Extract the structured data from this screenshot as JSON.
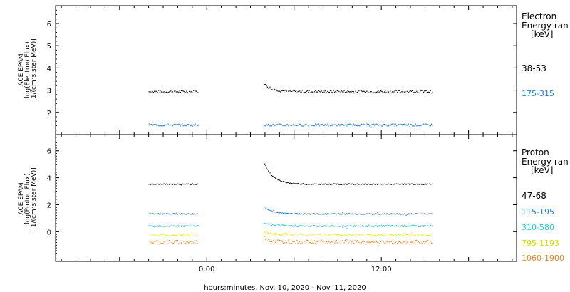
{
  "xlabel": "hours:minutes, Nov. 10, 2020 - Nov. 11, 2020",
  "colors": {
    "black": "#000000",
    "blue": "#1e7fd8",
    "cyan": "#22c6d6",
    "yellow": "#e6e600",
    "orange": "#e8851a"
  },
  "chart_data": [
    {
      "type": "scatter",
      "panel": "electron",
      "ylabel_lines": [
        "ACE EPAM",
        "log(Electron Flux)",
        "[1/(cm²s ster MeV)]"
      ],
      "legend_title": [
        "Electron",
        "Energy ran"
      ],
      "legend_unit": "[keV]",
      "x_range_hours": [
        -10.4,
        21.3
      ],
      "x_ticks": [
        {
          "label": "0:00",
          "hours": 0
        },
        {
          "label": "12:00",
          "hours": 12
        }
      ],
      "ylim": [
        1,
        6.8
      ],
      "y_ticks": [
        "2",
        "3",
        "4",
        "5",
        "6"
      ],
      "y_tick_values": [
        2,
        3,
        4,
        5,
        6
      ],
      "data_gap_hours": [
        -0.6,
        3.9
      ],
      "data_segments_hours": [
        [
          -4.0,
          -0.6
        ],
        [
          3.9,
          15.5
        ]
      ],
      "series": [
        {
          "name": "38-53",
          "color": "black",
          "level": 2.95,
          "spread": 0.06,
          "spike": 3.3
        },
        {
          "name": "175-315",
          "color": "blue",
          "level": 1.45,
          "spread": 0.05,
          "spike": null
        }
      ]
    },
    {
      "type": "scatter",
      "panel": "proton",
      "ylabel_lines": [
        "ACE EPAM",
        "log(Proton Flux)",
        "[1/(cm²s ster MeV)]"
      ],
      "legend_title": [
        "Proton",
        "Energy ran"
      ],
      "legend_unit": "[keV]",
      "x_range_hours": [
        -10.4,
        21.3
      ],
      "x_ticks": [
        {
          "label": "0:00",
          "hours": 0
        },
        {
          "label": "12:00",
          "hours": 12
        }
      ],
      "ylim": [
        -2.2,
        7.2
      ],
      "y_ticks": [
        "0",
        "2",
        "4",
        "6"
      ],
      "y_tick_values": [
        0,
        2,
        4,
        6
      ],
      "data_gap_hours": [
        -0.6,
        3.9
      ],
      "data_segments_hours": [
        [
          -4.0,
          -0.6
        ],
        [
          3.9,
          15.5
        ]
      ],
      "series": [
        {
          "name": "47-68",
          "color": "black",
          "level": 3.55,
          "spread": 0.03,
          "spike": 5.2
        },
        {
          "name": "115-195",
          "color": "blue",
          "level": 1.35,
          "spread": 0.04,
          "spike": 1.9
        },
        {
          "name": "310-580",
          "color": "cyan",
          "level": 0.45,
          "spread": 0.06,
          "spike": 0.7
        },
        {
          "name": "795-1193",
          "color": "yellow",
          "level": -0.2,
          "spread": 0.09,
          "spike": 0.0
        },
        {
          "name": "1060-1900",
          "color": "orange",
          "level": -0.75,
          "spread": 0.15,
          "spike": -0.4
        }
      ]
    }
  ]
}
